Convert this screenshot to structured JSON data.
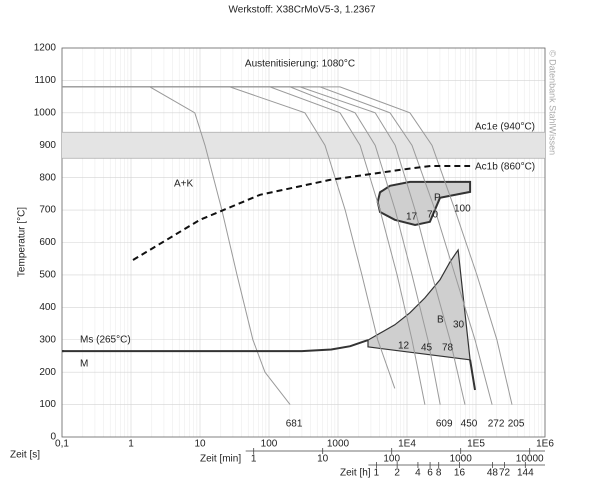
{
  "chart_data": {
    "type": "line",
    "title": "Werkstoff: X38CrMoV5-3, 1.2367",
    "x_label": "Zeit [s]",
    "y_label": "Temperatur [°C]",
    "x_scale": "log",
    "grid": true,
    "xlim": [
      0.1,
      1000000
    ],
    "xticks": [
      {
        "value": 0.1,
        "label": "0,1"
      },
      1,
      10,
      100,
      1000,
      {
        "value": 10000,
        "label": "1E4"
      },
      {
        "value": 100000,
        "label": "1E5"
      },
      {
        "value": 1000000,
        "label": "1E6"
      }
    ],
    "ylim": [
      0,
      1200
    ],
    "yticks": [
      0,
      100,
      200,
      300,
      400,
      500,
      600,
      700,
      800,
      900,
      1000,
      1100,
      1200
    ],
    "minutes_axis": {
      "label": "Zeit [min]",
      "ticks": [
        1,
        10,
        100,
        1000,
        10000
      ]
    },
    "hours_axis": {
      "label": "Zeit [h]",
      "ticks": [
        1,
        2,
        4,
        6,
        8,
        16,
        48,
        72,
        144
      ]
    },
    "watermark": "© Datenbank StahlWissen",
    "austenitizing": {
      "label": "Austenitisierung: 1080°C",
      "value": 1080
    },
    "ac1e": {
      "label": "Ac1e (940°C)",
      "value": 940
    },
    "ac1b": {
      "label": "Ac1b (860°C)",
      "value": 860
    },
    "phase_labels": {
      "ak": "A+K",
      "p": "P",
      "b": "B",
      "m": "M"
    },
    "pearlite_percent": [
      17,
      70,
      100
    ],
    "bainite_percent": [
      12,
      45,
      78,
      30
    ],
    "curve_color": "#9a9a9a",
    "curves": [
      {
        "hardness": 681,
        "x": [
          0.1,
          1.88,
          8.4,
          11.8,
          20.8,
          34.4,
          58.5,
          87.5,
          202
        ],
        "values": [
          1080,
          1080,
          1000,
          900,
          700,
          500,
          300,
          200,
          100
        ]
      },
      {
        "x": [
          0.1,
          27,
          331,
          648,
          1270,
          2220,
          3760,
          6650
        ],
        "values": [
          1080,
          1080,
          1000,
          900,
          700,
          500,
          300,
          150
        ]
      },
      {
        "x": [
          0.1,
          103,
          1070,
          2090,
          4060,
          7180,
          11800,
          18200
        ],
        "values": [
          1080,
          1080,
          1000,
          900,
          700,
          500,
          300,
          100
        ]
      },
      {
        "hardness": 609,
        "x": [
          0.1,
          202,
          1770,
          3460,
          6750,
          11800,
          20100,
          30300
        ],
        "values": [
          1080,
          1080,
          1000,
          900,
          700,
          500,
          300,
          100
        ]
      },
      {
        "hardness": 450,
        "x": [
          0.1,
          281,
          3460,
          6750,
          13100,
          23000,
          42000,
          69300
        ],
        "values": [
          1080,
          1080,
          1000,
          900,
          700,
          500,
          300,
          100
        ]
      },
      {
        "hardness": 272,
        "x": [
          0.1,
          548,
          5670,
          11800,
          25500,
          49600,
          96800,
          171000
        ],
        "values": [
          1080,
          1080,
          1000,
          900,
          700,
          500,
          300,
          100
        ]
      },
      {
        "hardness": 205,
        "x": [
          0.1,
          1069,
          11000,
          23000,
          49600,
          103000,
          201000,
          333000
        ],
        "values": [
          1080,
          1080,
          1000,
          900,
          700,
          500,
          300,
          100
        ]
      }
    ],
    "carbide_line": {
      "x": [
        1.07,
        10,
        74,
        760,
        7900,
        22000,
        82000
      ],
      "values": [
        546,
        670,
        747,
        793,
        824,
        836,
        836
      ]
    },
    "pearlite_region": {
      "x": [
        82000,
        11000,
        5670,
        4060,
        3760,
        4060,
        6650,
        13100,
        21500,
        30100,
        82000
      ],
      "values": [
        787,
        787,
        775,
        755,
        725,
        694,
        670,
        654,
        664,
        738,
        756
      ]
    },
    "bainite_region": {
      "x": [
        2720,
        6650,
        11000,
        18200,
        30100,
        42000,
        55000,
        82000,
        2720
      ],
      "values": [
        299,
        346,
        383,
        429,
        485,
        540,
        577,
        238,
        278
      ]
    },
    "bainite_tail": {
      "x": [
        82000,
        96800
      ],
      "values": [
        238,
        145
      ]
    },
    "ms_line": {
      "label": "Ms (265°C)",
      "value": 265,
      "x": [
        0.1,
        300,
        800,
        1500,
        2720
      ],
      "values": [
        265,
        265,
        270,
        280,
        299
      ]
    }
  }
}
